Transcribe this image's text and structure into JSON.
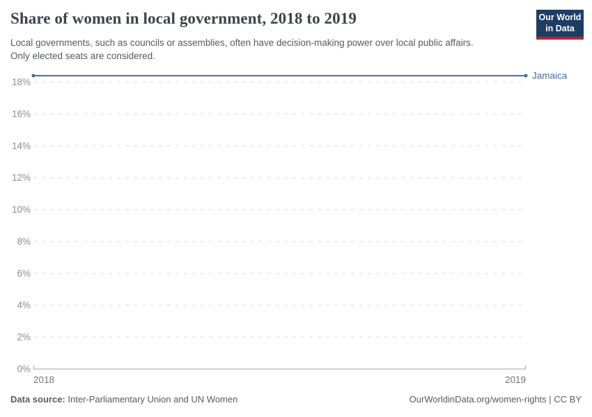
{
  "header": {
    "title": "Share of women in local government, 2018 to 2019",
    "subtitle": "Local governments, such as councils or assemblies, often have decision-making power over local public affairs. Only elected seats are considered.",
    "logo": {
      "line1": "Our World",
      "line2": "in Data"
    }
  },
  "chart_data": {
    "type": "line",
    "title": "Share of women in local government, 2018 to 2019",
    "x": [
      2018,
      2019
    ],
    "xticks": [
      "2018",
      "2019"
    ],
    "series": [
      {
        "name": "Jamaica",
        "values": [
          18.4,
          18.4
        ],
        "color": "#4C6A9C"
      }
    ],
    "ylim": [
      0,
      18
    ],
    "yticks": [
      0,
      2,
      4,
      6,
      8,
      10,
      12,
      14,
      16,
      18
    ],
    "ytick_suffix": "%",
    "xlabel": "",
    "ylabel": "",
    "grid": "horizontal-dashed",
    "legend_position": "end-of-line"
  },
  "footer": {
    "datasource_label": "Data source:",
    "datasource_value": "Inter-Parliamentary Union and UN Women",
    "attribution": "OurWorldinData.org/women-rights | CC BY"
  },
  "colors": {
    "line": "#4C6A9C",
    "title_color": "#3d4349",
    "subtitle_color": "#55595d",
    "ticklabel": "#8b8b8b",
    "xticklabel": "#757575",
    "grid": "#dcdcdc",
    "axis": "#a3a3a3",
    "footer_color": "#5b5b5b",
    "logo_bg": "#1d3d63",
    "logo_stripe": "#c7202c",
    "background": "#ffffff"
  }
}
